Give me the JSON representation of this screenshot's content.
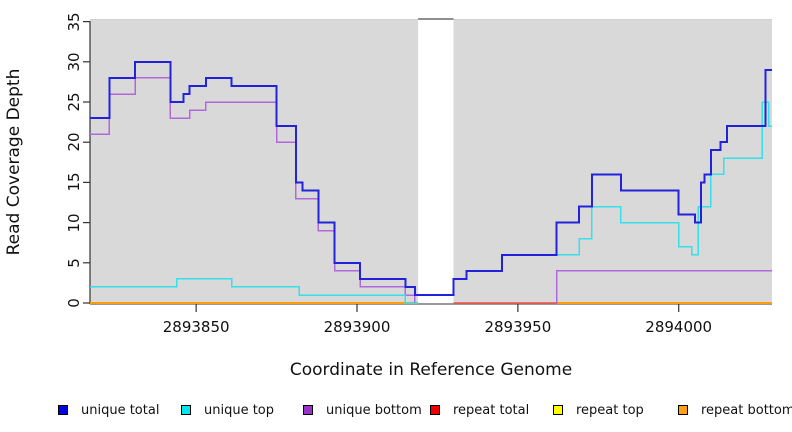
{
  "chart_data": {
    "type": "line",
    "subtype": "step-coverage",
    "title": "",
    "xlabel": "Coordinate in Reference Genome",
    "ylabel": "Read Coverage Depth",
    "xlim": [
      2893817,
      2894029
    ],
    "ylim": [
      0,
      35
    ],
    "x_ticks": [
      "2893850",
      "2893900",
      "2893950",
      "2894000"
    ],
    "x_tick_values": [
      2893850,
      2893900,
      2893950,
      2894000
    ],
    "y_ticks": [
      "0",
      "5",
      "10",
      "15",
      "20",
      "25",
      "30",
      "35"
    ],
    "y_tick_values": [
      0,
      5,
      10,
      15,
      20,
      25,
      30,
      35
    ],
    "grid": false,
    "plot_background": "#d9d9d9",
    "gap_region": {
      "x_start": 2893919,
      "x_end": 2893930,
      "fill": "#ffffff",
      "top_border": "#8f8f8f"
    },
    "axis_color": "#333333",
    "series": [
      {
        "name": "repeat top",
        "color": "#ffff00",
        "width": 1.5,
        "segments": [
          {
            "points": [
              [
                2893817,
                0
              ]
            ],
            "end": 2893919
          },
          {
            "points": [
              [
                2893930,
                0
              ]
            ],
            "end": 2894029
          }
        ]
      },
      {
        "name": "repeat bottom",
        "color": "#ff9d0a",
        "width": 2,
        "segments": [
          {
            "points": [
              [
                2893817,
                0
              ]
            ],
            "end": 2893919
          },
          {
            "points": [
              [
                2893930,
                0
              ]
            ],
            "end": 2894029
          }
        ]
      },
      {
        "name": "unique bottom",
        "color": "#b168db",
        "width": 1.5,
        "segments": [
          {
            "points": [
              [
                2893817,
                21
              ],
              [
                2893823,
                26
              ],
              [
                2893831,
                28
              ],
              [
                2893842,
                23
              ],
              [
                2893848,
                24
              ],
              [
                2893853,
                25
              ],
              [
                2893875,
                20
              ],
              [
                2893881,
                13
              ],
              [
                2893888,
                9
              ],
              [
                2893893,
                4
              ],
              [
                2893901,
                2
              ],
              [
                2893915,
                1
              ],
              [
                2893918,
                0
              ]
            ],
            "end": 2893919
          },
          {
            "points": [
              [
                2893930,
                0
              ],
              [
                2893962,
                4
              ]
            ],
            "end": 2894029
          }
        ]
      },
      {
        "name": "repeat total",
        "color": "#d9547a",
        "width": 1.5,
        "segments": [
          {
            "points": [
              [
                2893930,
                0
              ]
            ],
            "end": 2893962
          }
        ]
      },
      {
        "name": "unique top",
        "color": "#35dfeb",
        "width": 1.5,
        "segments": [
          {
            "points": [
              [
                2893817,
                2
              ],
              [
                2893844,
                3
              ],
              [
                2893861,
                2
              ],
              [
                2893882,
                1
              ],
              [
                2893915,
                0
              ]
            ],
            "end": 2893919
          },
          {
            "points": [
              [
                2893930,
                3
              ],
              [
                2893934,
                4
              ],
              [
                2893945,
                6
              ],
              [
                2893969,
                8
              ],
              [
                2893973,
                12
              ],
              [
                2893982,
                10
              ],
              [
                2894000,
                7
              ],
              [
                2894004,
                6
              ],
              [
                2894006,
                12
              ],
              [
                2894010,
                16
              ],
              [
                2894014,
                18
              ],
              [
                2894026,
                25
              ],
              [
                2894028,
                22
              ]
            ],
            "end": 2894029
          }
        ]
      },
      {
        "name": "unique total",
        "color": "#2222dd",
        "width": 2,
        "segments": [
          {
            "points": [
              [
                2893817,
                23
              ],
              [
                2893823,
                28
              ],
              [
                2893831,
                30
              ],
              [
                2893842,
                25
              ],
              [
                2893846,
                26
              ],
              [
                2893848,
                27
              ],
              [
                2893853,
                28
              ],
              [
                2893861,
                27
              ],
              [
                2893875,
                22
              ],
              [
                2893881,
                15
              ],
              [
                2893883,
                14
              ],
              [
                2893888,
                10
              ],
              [
                2893893,
                5
              ],
              [
                2893901,
                3
              ],
              [
                2893915,
                2
              ],
              [
                2893918,
                1
              ],
              [
                2893930,
                3
              ],
              [
                2893934,
                4
              ],
              [
                2893945,
                6
              ],
              [
                2893962,
                10
              ],
              [
                2893969,
                12
              ],
              [
                2893973,
                16
              ],
              [
                2893982,
                14
              ],
              [
                2894000,
                11
              ],
              [
                2894005,
                10
              ],
              [
                2894007,
                15
              ],
              [
                2894008,
                16
              ],
              [
                2894010,
                19
              ],
              [
                2894013,
                20
              ],
              [
                2894015,
                22
              ],
              [
                2894027,
                29
              ]
            ],
            "end": 2894029
          }
        ]
      }
    ],
    "legend": {
      "position": "bottom",
      "items": [
        {
          "label": "unique total",
          "color": "#0000e0"
        },
        {
          "label": "unique top",
          "color": "#00e5ee"
        },
        {
          "label": "unique bottom",
          "color": "#9933cc"
        },
        {
          "label": "repeat total",
          "color": "#ee0000"
        },
        {
          "label": "repeat top",
          "color": "#ffff00"
        },
        {
          "label": "repeat bottom",
          "color": "#ffa014"
        }
      ]
    }
  }
}
